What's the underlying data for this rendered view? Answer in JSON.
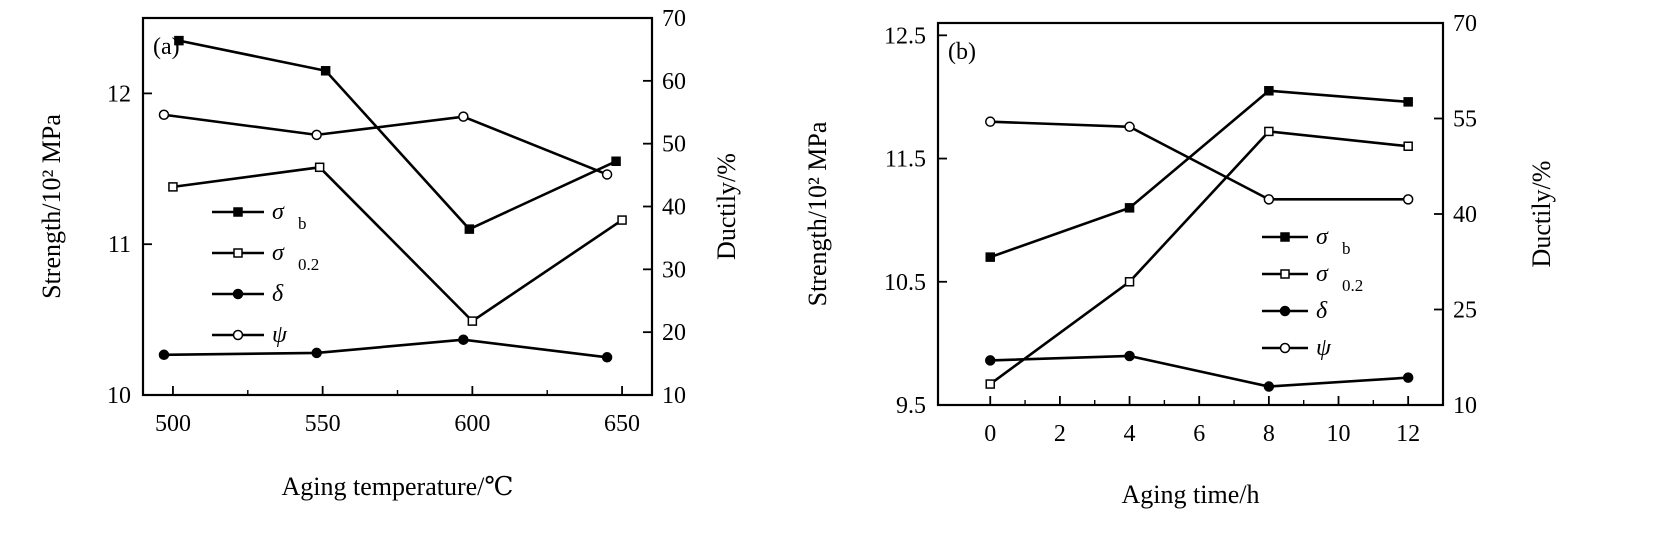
{
  "chart_data": [
    {
      "type": "line",
      "panel_label": "(a)",
      "xlabel": "Aging temperature/℃",
      "ylabel": "Strength/10² MPa",
      "y2label": "Ductily/%",
      "xlim": [
        490,
        660
      ],
      "ylim": [
        10,
        12.5
      ],
      "y2lim": [
        10,
        70
      ],
      "xticks": [
        500,
        550,
        600,
        650
      ],
      "yticks": [
        10,
        11,
        12
      ],
      "y2ticks": [
        10,
        20,
        30,
        40,
        50,
        60,
        70
      ],
      "legend_position": "center-left",
      "series": [
        {
          "name": "σ",
          "sub": "b",
          "marker": "filled-square",
          "axis": "left",
          "x": [
            502,
            551,
            599,
            648
          ],
          "y": [
            12.35,
            12.15,
            11.1,
            11.55
          ]
        },
        {
          "name": "σ",
          "sub": "0.2",
          "marker": "open-square",
          "axis": "left",
          "x": [
            500,
            549,
            600,
            650
          ],
          "y": [
            11.38,
            11.51,
            10.49,
            11.16
          ]
        },
        {
          "name": "δ",
          "sub": "",
          "marker": "filled-circle",
          "axis": "right",
          "x": [
            497,
            548,
            597,
            645
          ],
          "y": [
            16.4,
            16.7,
            18.8,
            16.0
          ]
        },
        {
          "name": "ψ",
          "sub": "",
          "marker": "open-circle",
          "axis": "right",
          "x": [
            497,
            548,
            597,
            645
          ],
          "y": [
            54.6,
            51.4,
            54.3,
            45.1
          ]
        }
      ]
    },
    {
      "type": "line",
      "panel_label": "(b)",
      "xlabel": "Aging time/h",
      "ylabel": "Strength/10² MPa",
      "y2label": "Ductily/%",
      "xlim": [
        -1.5,
        13
      ],
      "ylim": [
        9.5,
        12.6
      ],
      "y2lim": [
        10,
        70
      ],
      "xticks": [
        0,
        2,
        4,
        6,
        8,
        10,
        12
      ],
      "yticks": [
        9.5,
        10.5,
        11.5,
        12.5
      ],
      "y2ticks": [
        10,
        25,
        40,
        55,
        70
      ],
      "legend_position": "center-right",
      "series": [
        {
          "name": "σ",
          "sub": "b",
          "marker": "filled-square",
          "axis": "left",
          "x": [
            0,
            4,
            8,
            12
          ],
          "y": [
            10.7,
            11.1,
            12.05,
            11.96
          ]
        },
        {
          "name": "σ",
          "sub": "0.2",
          "marker": "open-square",
          "axis": "left",
          "x": [
            0,
            4,
            8,
            12
          ],
          "y": [
            9.67,
            10.5,
            11.72,
            11.6
          ]
        },
        {
          "name": "δ",
          "sub": "",
          "marker": "filled-circle",
          "axis": "right",
          "x": [
            0,
            4,
            8,
            12
          ],
          "y": [
            17.0,
            17.7,
            12.9,
            14.3
          ]
        },
        {
          "name": "ψ",
          "sub": "",
          "marker": "open-circle",
          "axis": "right",
          "x": [
            0,
            4,
            8,
            12
          ],
          "y": [
            54.5,
            53.7,
            42.3,
            42.3
          ]
        }
      ]
    }
  ]
}
